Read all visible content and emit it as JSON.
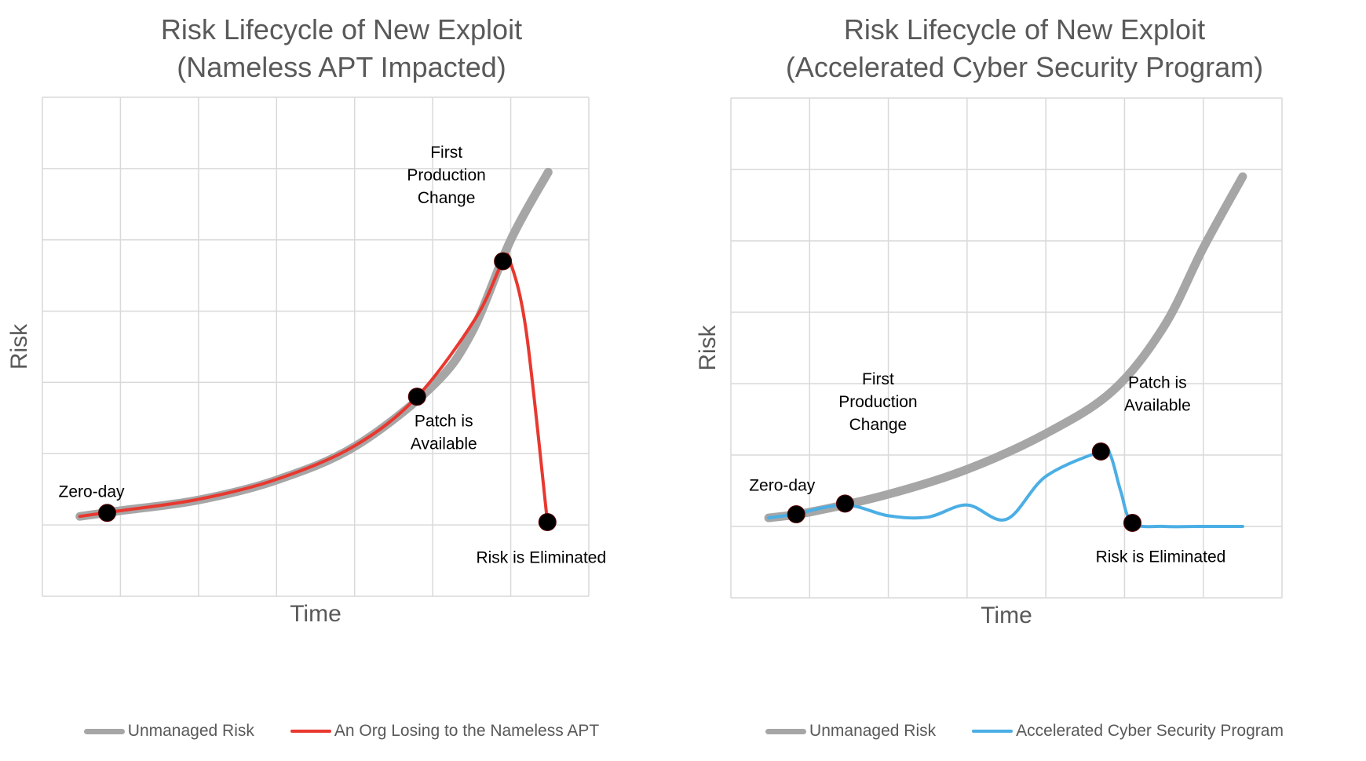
{
  "colors": {
    "unmanaged": "#a6a6a6",
    "apt": "#e8382f",
    "accelerated": "#4baee4",
    "grid": "#d9d9d9",
    "text": "#595959",
    "marker": "#000000"
  },
  "chart_data": [
    {
      "type": "line",
      "title_line1": "Risk Lifecycle of New Exploit",
      "title_line2": "(Nameless APT Impacted)",
      "xlabel": "Time",
      "ylabel": "Risk",
      "xlim": [
        0,
        7
      ],
      "ylim": [
        0,
        7
      ],
      "grid": true,
      "legend_position": "bottom",
      "series": [
        {
          "name": "Unmanaged Risk",
          "x": [
            0.48,
            1,
            2,
            3,
            4,
            5,
            5.5,
            6,
            6.48
          ],
          "y": [
            1.12,
            1.2,
            1.35,
            1.63,
            2.1,
            2.95,
            3.7,
            5.0,
            5.95
          ]
        },
        {
          "name": "An Org Losing to the Nameless APT",
          "x": [
            0.48,
            1,
            2,
            3,
            4,
            4.8,
            5.55,
            5.9,
            6.0,
            6.2,
            6.47
          ],
          "y": [
            1.12,
            1.2,
            1.36,
            1.64,
            2.11,
            2.8,
            3.9,
            4.7,
            4.67,
            3.7,
            1.04
          ]
        }
      ],
      "annotations": [
        {
          "label_lines": [
            "Zero-day"
          ],
          "x": 0.83,
          "y": 1.17
        },
        {
          "label_lines": [
            "Patch is",
            "Available"
          ],
          "x": 4.8,
          "y": 2.8
        },
        {
          "label_lines": [
            "First",
            "Production",
            "Change"
          ],
          "x": 5.9,
          "y": 4.7
        },
        {
          "label_lines": [
            "Risk is Eliminated"
          ],
          "x": 6.47,
          "y": 1.04
        }
      ]
    },
    {
      "type": "line",
      "title_line1": "Risk Lifecycle of New Exploit",
      "title_line2": "(Accelerated Cyber Security Program)",
      "xlabel": "Time",
      "ylabel": "Risk",
      "xlim": [
        0,
        7
      ],
      "ylim": [
        0,
        7
      ],
      "grid": true,
      "legend_position": "bottom",
      "series": [
        {
          "name": "Unmanaged Risk",
          "x": [
            0.48,
            1,
            2,
            3,
            4,
            4.85,
            5.5,
            6,
            6.5
          ],
          "y": [
            1.12,
            1.2,
            1.45,
            1.8,
            2.3,
            2.9,
            3.8,
            4.9,
            5.9
          ]
        },
        {
          "name": "Accelerated Cyber Security Program",
          "x": [
            0.48,
            0.8,
            1.45,
            2.0,
            2.5,
            3.0,
            3.5,
            4.0,
            4.7,
            4.82,
            4.95,
            5.1,
            5.5,
            6.0,
            6.5
          ],
          "y": [
            1.12,
            1.17,
            1.3,
            1.15,
            1.13,
            1.3,
            1.1,
            1.7,
            2.05,
            2.0,
            1.5,
            1.05,
            1.0,
            1.0,
            1.0
          ]
        }
      ],
      "annotations": [
        {
          "label_lines": [
            "Zero-day"
          ],
          "x": 0.83,
          "y": 1.17
        },
        {
          "label_lines": [
            "First",
            "Production",
            "Change"
          ],
          "x": 1.45,
          "y": 1.32
        },
        {
          "label_lines": [
            "Patch is",
            "Available"
          ],
          "x": 4.7,
          "y": 2.05
        },
        {
          "label_lines": [
            "Risk is Eliminated"
          ],
          "x": 5.1,
          "y": 1.05
        }
      ]
    }
  ]
}
